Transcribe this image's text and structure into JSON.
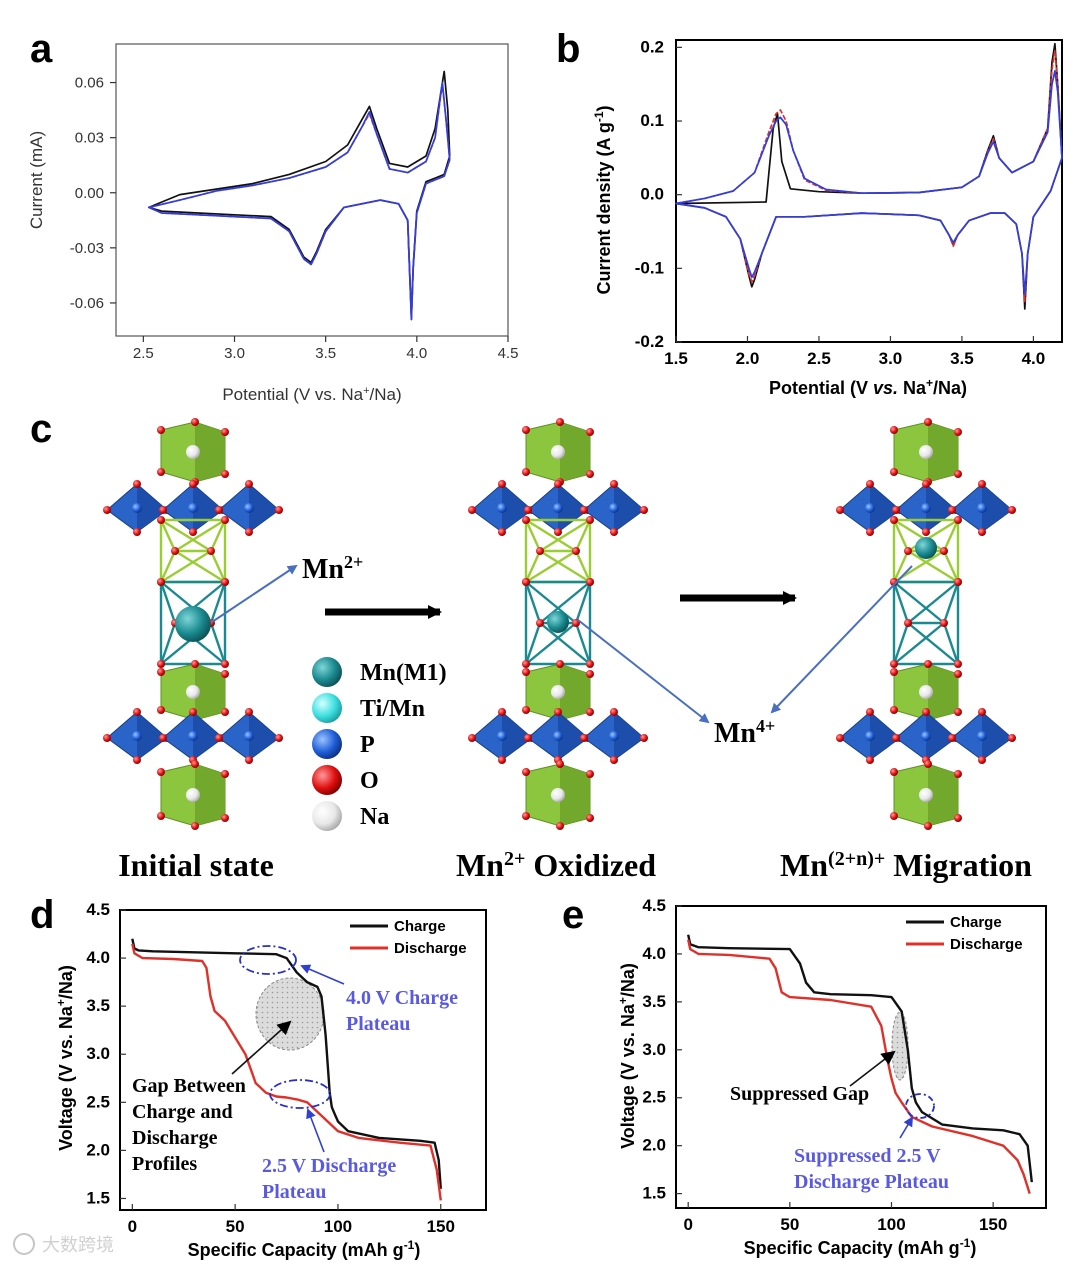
{
  "watermark": "大数跨境",
  "panel_labels": {
    "a": "a",
    "b": "b",
    "c": "c",
    "d": "d",
    "e": "e"
  },
  "colors": {
    "black": "#111111",
    "red": "#e0302a",
    "blue": "#2e3fe0",
    "annot_blue": "#5a5ae0",
    "green": "#8cc63f",
    "poly_blue": "#2a64c8",
    "teal": "#1a8a90"
  },
  "panel_c": {
    "states": [
      "Initial state",
      "Mn2+ Oxidized",
      "Mn(2+n)+ Migration"
    ],
    "labels": {
      "mn2": "Mn2+",
      "mn4": "Mn4+"
    },
    "legend": [
      {
        "name": "Mn(M1)",
        "color": "#1a8a90"
      },
      {
        "name": "Ti/Mn",
        "color": "#3ee0e0"
      },
      {
        "name": "P",
        "color": "#1f5fd8"
      },
      {
        "name": "O",
        "color": "#e01010"
      },
      {
        "name": "Na",
        "color": "#e8e8e8"
      }
    ]
  },
  "chart_data": [
    {
      "id": "a",
      "type": "line",
      "xlabel": "Potential (V vs. Na+/Na)",
      "ylabel": "Current (mA)",
      "xlim": [
        2.35,
        4.5
      ],
      "ylim": [
        -0.078,
        0.081
      ],
      "xticks": [
        "2.5",
        "3.0",
        "3.5",
        "4.0",
        "4.5"
      ],
      "yticks": [
        "0.06",
        "0.03",
        "0.00",
        "-0.03",
        "-0.06"
      ],
      "series": [
        {
          "name": "cycle-black",
          "color": "#111111",
          "x": [
            2.7,
            2.9,
            3.1,
            3.3,
            3.5,
            3.62,
            3.7,
            3.74,
            3.78,
            3.85,
            3.95,
            4.05,
            4.1,
            4.14,
            4.15,
            4.17,
            4.18,
            4.15,
            4.1,
            4.05,
            4.0,
            3.98,
            3.97,
            3.95,
            3.9,
            3.8,
            3.6,
            3.5,
            3.45,
            3.42,
            3.38,
            3.3,
            3.2,
            3.0,
            2.8,
            2.6,
            2.53
          ],
          "y": [
            -0.001,
            0.002,
            0.005,
            0.01,
            0.017,
            0.026,
            0.04,
            0.047,
            0.035,
            0.016,
            0.014,
            0.02,
            0.035,
            0.06,
            0.066,
            0.045,
            0.02,
            0.01,
            0.008,
            0.006,
            -0.01,
            -0.04,
            -0.068,
            -0.015,
            -0.006,
            -0.004,
            -0.008,
            -0.02,
            -0.032,
            -0.038,
            -0.035,
            -0.02,
            -0.013,
            -0.012,
            -0.011,
            -0.01,
            -0.008
          ]
        },
        {
          "name": "cycle-red",
          "color": "#e0302a",
          "x": [
            2.53,
            2.7,
            2.9,
            3.1,
            3.3,
            3.5,
            3.62,
            3.7,
            3.74,
            3.78,
            3.85,
            3.95,
            4.05,
            4.1,
            4.13,
            4.14,
            4.16,
            4.18,
            4.15,
            4.1,
            4.05,
            4.0,
            3.98,
            3.97,
            3.95,
            3.9,
            3.8,
            3.6,
            3.5,
            3.45,
            3.42,
            3.38,
            3.3,
            3.2,
            3.0,
            2.8,
            2.6,
            2.53
          ],
          "y": [
            -0.008,
            -0.004,
            0.001,
            0.004,
            0.008,
            0.014,
            0.022,
            0.036,
            0.043,
            0.032,
            0.013,
            0.011,
            0.017,
            0.03,
            0.052,
            0.059,
            0.04,
            0.018,
            0.009,
            0.007,
            0.005,
            -0.011,
            -0.041,
            -0.069,
            -0.015,
            -0.006,
            -0.004,
            -0.008,
            -0.021,
            -0.033,
            -0.039,
            -0.036,
            -0.021,
            -0.014,
            -0.013,
            -0.012,
            -0.011,
            -0.008
          ]
        },
        {
          "name": "cycle-blue",
          "color": "#2e3fe0",
          "x": [
            2.53,
            2.7,
            2.9,
            3.1,
            3.3,
            3.5,
            3.62,
            3.7,
            3.74,
            3.78,
            3.85,
            3.95,
            4.05,
            4.1,
            4.13,
            4.14,
            4.16,
            4.18,
            4.15,
            4.1,
            4.05,
            4.0,
            3.98,
            3.97,
            3.95,
            3.9,
            3.8,
            3.6,
            3.5,
            3.45,
            3.42,
            3.38,
            3.3,
            3.2,
            3.0,
            2.8,
            2.6,
            2.53
          ],
          "y": [
            -0.008,
            -0.004,
            0.001,
            0.004,
            0.008,
            0.014,
            0.022,
            0.036,
            0.044,
            0.032,
            0.013,
            0.011,
            0.017,
            0.03,
            0.053,
            0.06,
            0.04,
            0.018,
            0.009,
            0.007,
            0.005,
            -0.011,
            -0.041,
            -0.069,
            -0.015,
            -0.006,
            -0.004,
            -0.008,
            -0.021,
            -0.033,
            -0.039,
            -0.036,
            -0.021,
            -0.014,
            -0.013,
            -0.012,
            -0.011,
            -0.008
          ]
        }
      ]
    },
    {
      "id": "b",
      "type": "line",
      "xlabel": "Potential (V vs. Na+/Na)",
      "ylabel": "Current density (A g-1)",
      "xlim": [
        1.5,
        4.2
      ],
      "ylim": [
        -0.2,
        0.21
      ],
      "xticks": [
        "1.5",
        "2.0",
        "2.5",
        "3.0",
        "3.5",
        "4.0"
      ],
      "yticks": [
        "0.2",
        "0.1",
        "0.0",
        "-0.1",
        "-0.2"
      ],
      "series": [
        {
          "name": "cycle-black",
          "color": "#111111",
          "x": [
            2.13,
            2.15,
            2.18,
            2.21,
            2.24,
            2.3,
            2.5,
            2.8,
            3.2,
            3.5,
            3.62,
            3.68,
            3.72,
            3.76,
            3.85,
            4.0,
            4.1,
            4.13,
            4.15,
            4.17,
            4.2,
            4.12,
            4.0,
            3.96,
            3.94,
            3.92,
            3.88,
            3.8,
            3.7,
            3.55,
            3.47,
            3.44,
            3.41,
            3.35,
            3.2,
            2.8,
            2.4,
            2.3,
            2.2,
            2.1,
            2.05,
            2.03,
            2.01,
            1.95,
            1.85,
            1.7,
            1.5
          ],
          "y": [
            -0.01,
            0.03,
            0.09,
            0.11,
            0.045,
            0.008,
            0.004,
            0.002,
            0.003,
            0.01,
            0.025,
            0.06,
            0.08,
            0.05,
            0.03,
            0.045,
            0.09,
            0.18,
            0.205,
            0.15,
            0.05,
            0.005,
            -0.03,
            -0.08,
            -0.155,
            -0.08,
            -0.04,
            -0.025,
            -0.025,
            -0.035,
            -0.055,
            -0.068,
            -0.055,
            -0.035,
            -0.028,
            -0.025,
            -0.03,
            -0.03,
            -0.03,
            -0.08,
            -0.115,
            -0.125,
            -0.11,
            -0.06,
            -0.03,
            -0.018,
            -0.012
          ]
        },
        {
          "name": "cycle-red",
          "color": "#e0302a",
          "x": [
            1.5,
            1.7,
            1.9,
            2.05,
            2.15,
            2.2,
            2.23,
            2.27,
            2.32,
            2.4,
            2.55,
            2.8,
            3.2,
            3.5,
            3.62,
            3.68,
            3.72,
            3.76,
            3.85,
            4.0,
            4.1,
            4.13,
            4.15,
            4.17,
            4.2,
            4.12,
            4.0,
            3.96,
            3.94,
            3.92,
            3.88,
            3.8,
            3.7,
            3.55,
            3.47,
            3.44,
            3.41,
            3.35,
            3.2,
            2.8,
            2.4,
            2.3,
            2.2,
            2.1,
            2.05,
            2.03,
            2.01,
            1.95,
            1.85,
            1.7,
            1.5
          ],
          "y": [
            -0.012,
            -0.005,
            0.005,
            0.03,
            0.085,
            0.11,
            0.115,
            0.1,
            0.06,
            0.02,
            0.006,
            0.002,
            0.003,
            0.01,
            0.025,
            0.058,
            0.076,
            0.05,
            0.03,
            0.045,
            0.09,
            0.17,
            0.195,
            0.15,
            0.05,
            0.005,
            -0.03,
            -0.08,
            -0.145,
            -0.08,
            -0.04,
            -0.025,
            -0.025,
            -0.035,
            -0.055,
            -0.07,
            -0.055,
            -0.035,
            -0.028,
            -0.025,
            -0.03,
            -0.03,
            -0.03,
            -0.08,
            -0.11,
            -0.118,
            -0.108,
            -0.06,
            -0.03,
            -0.018,
            -0.012
          ]
        },
        {
          "name": "cycle-blue",
          "color": "#2e3fe0",
          "x": [
            1.5,
            1.7,
            1.9,
            2.05,
            2.15,
            2.2,
            2.23,
            2.27,
            2.32,
            2.4,
            2.55,
            2.8,
            3.2,
            3.5,
            3.62,
            3.68,
            3.72,
            3.76,
            3.85,
            4.0,
            4.1,
            4.13,
            4.15,
            4.17,
            4.2,
            4.12,
            4.0,
            3.96,
            3.94,
            3.92,
            3.88,
            3.8,
            3.7,
            3.55,
            3.47,
            3.44,
            3.41,
            3.35,
            3.2,
            2.8,
            2.4,
            2.3,
            2.2,
            2.1,
            2.05,
            2.03,
            2.01,
            1.95,
            1.85,
            1.7,
            1.5
          ],
          "y": [
            -0.012,
            -0.005,
            0.005,
            0.03,
            0.08,
            0.1,
            0.105,
            0.095,
            0.06,
            0.022,
            0.007,
            0.002,
            0.003,
            0.01,
            0.025,
            0.056,
            0.072,
            0.05,
            0.03,
            0.045,
            0.085,
            0.15,
            0.168,
            0.14,
            0.05,
            0.005,
            -0.03,
            -0.08,
            -0.135,
            -0.08,
            -0.04,
            -0.025,
            -0.025,
            -0.035,
            -0.055,
            -0.065,
            -0.055,
            -0.035,
            -0.028,
            -0.025,
            -0.03,
            -0.03,
            -0.03,
            -0.08,
            -0.105,
            -0.112,
            -0.1,
            -0.06,
            -0.03,
            -0.018,
            -0.012
          ]
        }
      ]
    },
    {
      "id": "d",
      "type": "line",
      "xlabel": "Specific Capacity (mAh g-1)",
      "ylabel": "Voltage (V vs. Na+/Na)",
      "xlim": [
        -6,
        172
      ],
      "ylim": [
        1.38,
        4.5
      ],
      "xticks": [
        "0",
        "50",
        "100",
        "150"
      ],
      "yticks": [
        "4.5",
        "4.0",
        "3.5",
        "3.0",
        "2.5",
        "2.0",
        "1.5"
      ],
      "legend": [
        "Charge",
        "Discharge"
      ],
      "series": [
        {
          "name": "Charge",
          "color": "#111111",
          "x": [
            0,
            1,
            3,
            10,
            30,
            50,
            70,
            75,
            80,
            85,
            90,
            92,
            94,
            96,
            97,
            98,
            100,
            105,
            120,
            140,
            147,
            149,
            150
          ],
          "y": [
            4.2,
            4.1,
            4.08,
            4.07,
            4.06,
            4.05,
            4.04,
            4.0,
            3.85,
            3.75,
            3.7,
            3.6,
            3.2,
            2.6,
            2.45,
            2.4,
            2.3,
            2.2,
            2.13,
            2.1,
            2.08,
            1.9,
            1.6
          ]
        },
        {
          "name": "Discharge",
          "color": "#e0302a",
          "x": [
            0,
            1,
            5,
            20,
            34,
            36,
            38,
            40,
            45,
            55,
            60,
            65,
            70,
            75,
            80,
            85,
            90,
            95,
            100,
            110,
            130,
            145,
            148,
            150
          ],
          "y": [
            4.15,
            4.05,
            4.0,
            3.99,
            3.97,
            3.9,
            3.6,
            3.45,
            3.35,
            3.0,
            2.7,
            2.6,
            2.56,
            2.55,
            2.53,
            2.5,
            2.4,
            2.3,
            2.2,
            2.13,
            2.08,
            2.05,
            1.8,
            1.48
          ]
        }
      ],
      "annotations": [
        "4.0 V Charge Plateau",
        "Gap Between Charge and Discharge Profiles",
        "2.5 V Discharge Plateau"
      ]
    },
    {
      "id": "e",
      "type": "line",
      "xlabel": "Specific Capacity (mAh g-1)",
      "ylabel": "Voltage (V vs. Na+/Na)",
      "xlim": [
        -6,
        176
      ],
      "ylim": [
        1.35,
        4.5
      ],
      "xticks": [
        "0",
        "50",
        "100",
        "150"
      ],
      "yticks": [
        "4.5",
        "4.0",
        "3.5",
        "3.0",
        "2.5",
        "2.0",
        "1.5"
      ],
      "legend": [
        "Charge",
        "Discharge"
      ],
      "series": [
        {
          "name": "Charge",
          "color": "#111111",
          "x": [
            0,
            1,
            5,
            20,
            50,
            55,
            58,
            62,
            70,
            90,
            100,
            105,
            108,
            110,
            112,
            115,
            125,
            140,
            155,
            163,
            167,
            169
          ],
          "y": [
            4.2,
            4.1,
            4.07,
            4.06,
            4.05,
            3.9,
            3.7,
            3.6,
            3.58,
            3.57,
            3.55,
            3.4,
            3.0,
            2.6,
            2.45,
            2.35,
            2.22,
            2.18,
            2.16,
            2.12,
            2.0,
            1.62
          ]
        },
        {
          "name": "Discharge",
          "color": "#e0302a",
          "x": [
            0,
            1,
            5,
            20,
            40,
            43,
            46,
            50,
            70,
            90,
            95,
            98,
            100,
            102,
            105,
            110,
            120,
            140,
            155,
            162,
            165,
            168
          ],
          "y": [
            4.15,
            4.05,
            4.0,
            3.99,
            3.95,
            3.85,
            3.6,
            3.55,
            3.52,
            3.45,
            3.25,
            2.9,
            2.7,
            2.55,
            2.45,
            2.3,
            2.2,
            2.1,
            2.0,
            1.85,
            1.7,
            1.5
          ]
        }
      ],
      "annotations": [
        "Suppressed Gap",
        "Suppressed 2.5 V Discharge Plateau"
      ]
    }
  ]
}
